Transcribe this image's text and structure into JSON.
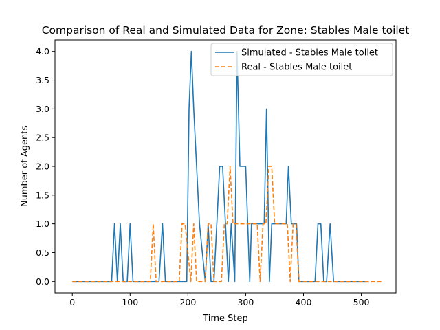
{
  "chart_data": {
    "type": "line",
    "title": "Comparison of Real and Simulated Data for Zone: Stables Male toilet",
    "xlabel": "Time Step",
    "ylabel": "Number of Agents",
    "xlim": [
      -30,
      560
    ],
    "ylim": [
      -0.2,
      4.2
    ],
    "xticks": [
      0,
      100,
      200,
      300,
      400,
      500
    ],
    "yticks": [
      0.0,
      0.5,
      1.0,
      1.5,
      2.0,
      2.5,
      3.0,
      3.5,
      4.0
    ],
    "ytick_labels": [
      "0.0",
      "0.5",
      "1.0",
      "1.5",
      "2.0",
      "2.5",
      "3.0",
      "3.5",
      "4.0"
    ],
    "legend_position": "upper right",
    "series": [
      {
        "name": "Simulated - Stables Male toilet",
        "color": "#1f77b4",
        "style": "solid",
        "x": [
          0,
          68,
          73,
          78,
          83,
          88,
          95,
          100,
          105,
          150,
          156,
          161,
          198,
          202,
          206,
          210,
          215,
          220,
          230,
          235,
          240,
          245,
          255,
          260,
          265,
          270,
          275,
          281,
          285,
          290,
          295,
          300,
          307,
          310,
          315,
          322,
          327,
          332,
          336,
          341,
          345,
          355,
          365,
          370,
          374,
          379,
          383,
          388,
          392,
          397,
          420,
          425,
          430,
          435,
          440,
          446,
          452,
          510
        ],
        "y": [
          0,
          0,
          1,
          0,
          1,
          0,
          0,
          1,
          0,
          0,
          1,
          0,
          0,
          3,
          4,
          3,
          2,
          1,
          0,
          1,
          0,
          0,
          2,
          2,
          1,
          0,
          1,
          0,
          4,
          2,
          2,
          2,
          0,
          1,
          1,
          1,
          1,
          1,
          3,
          0,
          1,
          1,
          1,
          1,
          2,
          1,
          1,
          1,
          0,
          0,
          0,
          1,
          1,
          0,
          0,
          1,
          0,
          0
        ]
      },
      {
        "name": "Real - Stables Male toilet",
        "color": "#ff7f0e",
        "style": "dashed",
        "x": [
          0,
          75,
          80,
          135,
          140,
          145,
          185,
          190,
          195,
          205,
          210,
          215,
          225,
          230,
          235,
          240,
          245,
          258,
          263,
          268,
          273,
          278,
          320,
          325,
          330,
          335,
          340,
          345,
          350,
          372,
          377,
          382,
          387,
          392,
          397,
          535
        ],
        "y": [
          0,
          0,
          0,
          0,
          1,
          0,
          0,
          1,
          1,
          0,
          1,
          0,
          0,
          0,
          1,
          1,
          0,
          0,
          1,
          1,
          2,
          1,
          1,
          0,
          1,
          1,
          2,
          2,
          1,
          1,
          0,
          1,
          1,
          0,
          0,
          0
        ]
      }
    ]
  }
}
